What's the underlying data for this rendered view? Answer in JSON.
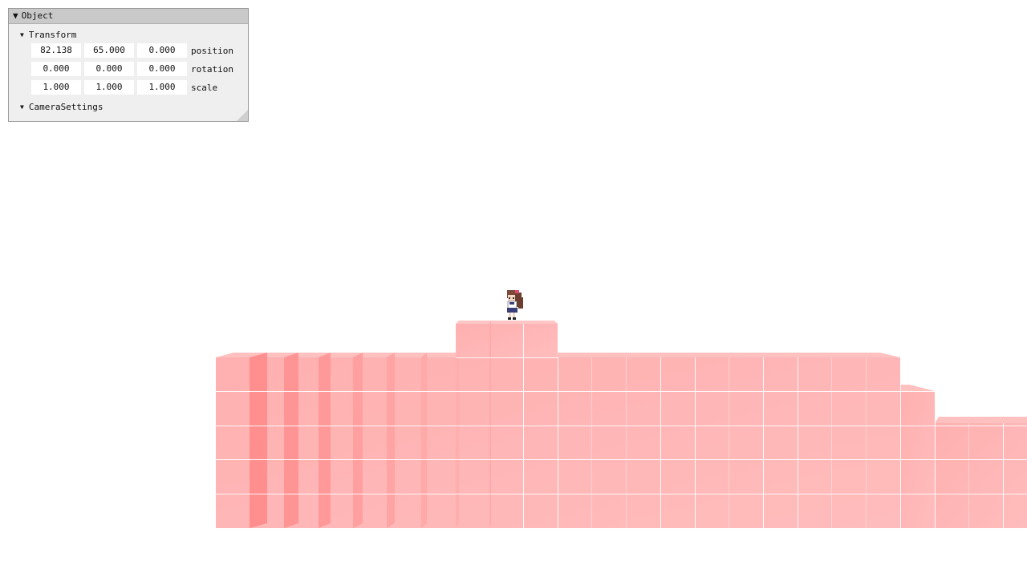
{
  "inspector": {
    "title": "Object",
    "transform": {
      "label": "Transform",
      "position": {
        "label": "position",
        "x": "82.138",
        "y": "65.000",
        "z": "0.000"
      },
      "rotation": {
        "label": "rotation",
        "x": "0.000",
        "y": "0.000",
        "z": "0.000"
      },
      "scale": {
        "label": "scale",
        "x": "1.000",
        "y": "1.000",
        "z": "1.000"
      }
    },
    "camera_settings": {
      "label": "CameraSettings"
    }
  },
  "icons": {
    "expand": "triangle-down-icon",
    "resize": "resize-grip-icon"
  },
  "scene": {
    "block_color": "#ffb3b3",
    "block_side_color": "#ff8a8a",
    "grid_line_color": "#ffffff",
    "background": "#ffffff",
    "character": "pixel-character-sprite"
  }
}
